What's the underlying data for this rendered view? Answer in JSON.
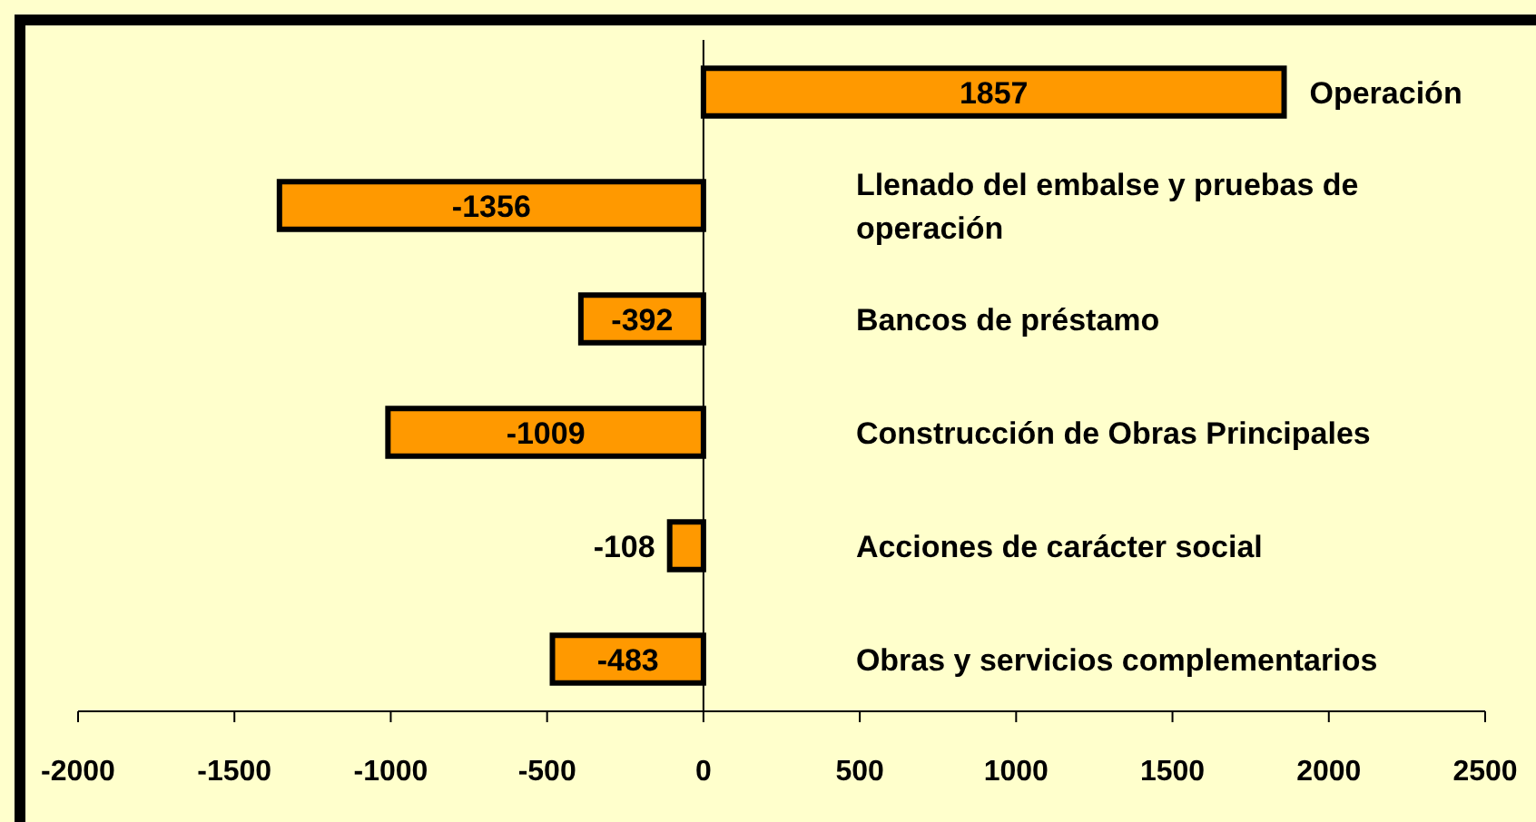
{
  "chart_data": {
    "type": "bar",
    "orientation": "horizontal",
    "categories": [
      "Operación",
      "Llenado del embalse y pruebas de operación",
      "Bancos de préstamo",
      "Construcción de Obras Principales",
      "Acciones de carácter social",
      "Obras y servicios complementarios"
    ],
    "values": [
      1857,
      -1356,
      -392,
      -1009,
      -108,
      -483
    ],
    "color": "#ff9900",
    "data_labels": true,
    "xlim": [
      -2000,
      2500
    ],
    "xticks": [
      -2000,
      -1500,
      -1000,
      -500,
      0,
      500,
      1000,
      1500,
      2000,
      2500
    ]
  }
}
